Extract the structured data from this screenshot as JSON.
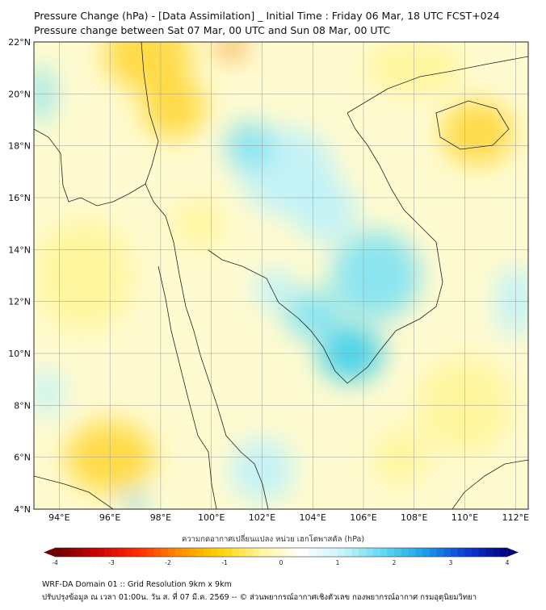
{
  "title": {
    "line1": "Pressure Change (hPa) - [Data Assimilation] _ Initial Time : Friday 06 Mar, 18 UTC FCST+024",
    "line2": "Pressure change between Sat 07 Mar, 00 UTC and Sun 08 Mar, 00 UTC"
  },
  "map": {
    "lat_range": [
      4,
      22
    ],
    "lon_range": [
      93,
      112.5
    ],
    "lat_ticks": [
      "22°N",
      "20°N",
      "18°N",
      "16°N",
      "14°N",
      "12°N",
      "10°N",
      "8°N",
      "6°N",
      "4°N"
    ],
    "lon_ticks": [
      "94°E",
      "96°E",
      "98°E",
      "100°E",
      "102°E",
      "104°E",
      "106°E",
      "108°E",
      "110°E",
      "112°E"
    ],
    "colors": {
      "neutral": "#ffffff",
      "warm_light": "#fff59a",
      "warm_mid": "#ffd83a",
      "warm_hot": "#f29a2a",
      "cool_light": "#bff2fb",
      "cool_mid": "#7fe2f3",
      "cool_deep": "#3ccfec",
      "border": "#222222"
    }
  },
  "colorbar": {
    "title": "ความกดอากาศเปลี่ยนแปลง หน่วย เฮกโตพาสคัล (hPa)",
    "ticks": [
      "-4",
      "-3",
      "-2",
      "-1",
      "0",
      "1",
      "2",
      "3",
      "4"
    ],
    "min": -4,
    "max": 4,
    "stops": [
      "#6b0000",
      "#c80000",
      "#ff2a00",
      "#ff8c00",
      "#ffd400",
      "#fff59a",
      "#ffffff",
      "#c8f4fb",
      "#5ed8f0",
      "#1a9ee8",
      "#0a3cd6",
      "#000080"
    ]
  },
  "footer": {
    "line1": "WRF-DA Domain 01 :: Grid Resolution 9km x 9km",
    "line2": "ปรับปรุงข้อมูล ณ เวลา 01:00น. วัน ส. ที่ 07 มี.ค. 2569 -- © ส่วนพยากรณ์อากาศเชิงตัวเลข กองพยากรณ์อากาศ กรมอุตุนิยมวิทยา"
  }
}
